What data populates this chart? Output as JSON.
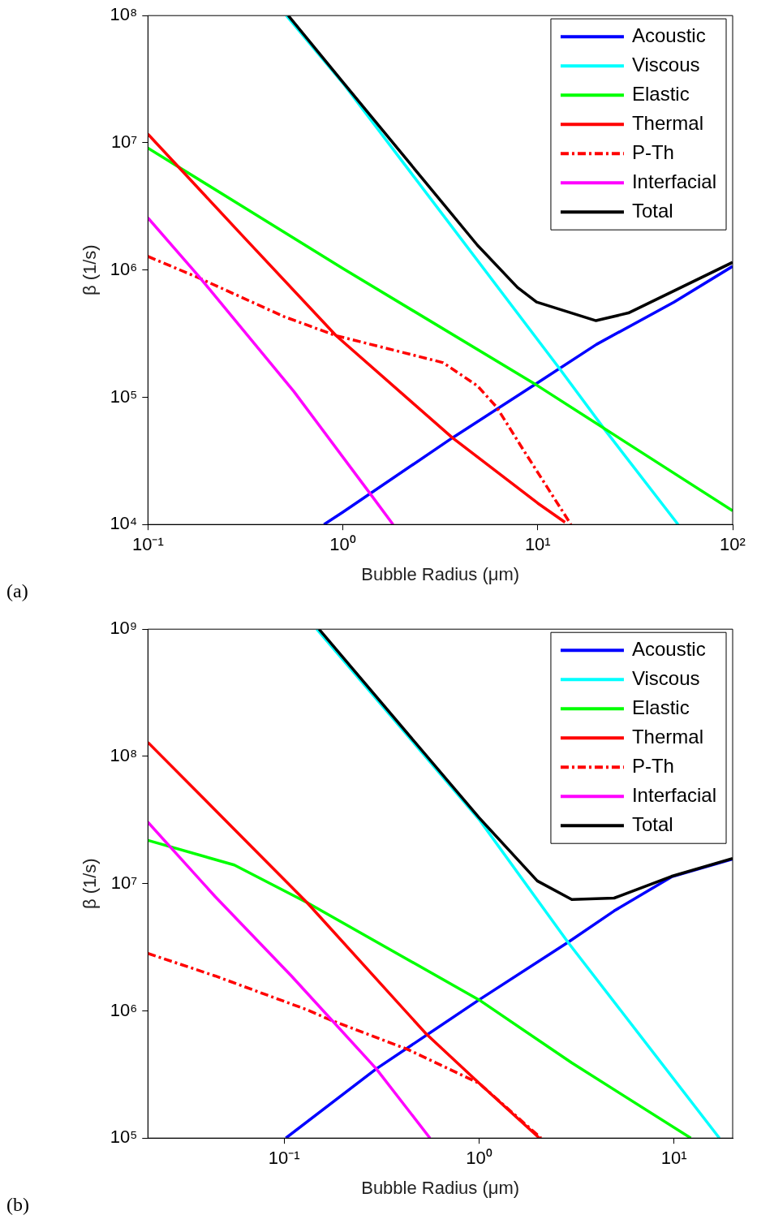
{
  "chart_data": [
    {
      "type": "line",
      "xlabel": "Bubble Radius (μm)",
      "ylabel": "β (1/s)",
      "log": "xy",
      "xlim": [
        0.1,
        100
      ],
      "ylim": [
        10000,
        100000000
      ],
      "xticks": [
        {
          "value": 0.1,
          "label": "10⁻¹"
        },
        {
          "value": 1,
          "label": "10⁰"
        },
        {
          "value": 10,
          "label": "10¹"
        },
        {
          "value": 100,
          "label": "10²"
        }
      ],
      "yticks": [
        {
          "value": 10000,
          "label": "10⁴"
        },
        {
          "value": 100000,
          "label": "10⁵"
        },
        {
          "value": 1000000,
          "label": "10⁶"
        },
        {
          "value": 10000000,
          "label": "10⁷"
        },
        {
          "value": 100000000,
          "label": "10⁸"
        }
      ],
      "legend": "top right",
      "marker": "none",
      "annotations": [
        "(a)"
      ],
      "series": [
        {
          "name": "Acoustic",
          "color": "#0000ff",
          "x": [
            0.8,
            1,
            3.65,
            10,
            20,
            50,
            100
          ],
          "values": [
            10000,
            12500,
            48000,
            130000,
            260000,
            560000,
            1070000
          ]
        },
        {
          "name": "Viscous",
          "color": "#00ffff",
          "x": [
            0.513,
            1,
            12.9,
            22.2,
            52.5
          ],
          "values": [
            100000000,
            29500000,
            169000,
            55000,
            10000
          ]
        },
        {
          "name": "Elastic",
          "color": "#00ff00",
          "x": [
            0.1,
            1,
            10,
            100
          ],
          "values": [
            9100000,
            1030000,
            123000,
            12800
          ]
        },
        {
          "name": "Thermal",
          "color": "#ff0000",
          "x": [
            0.1,
            0.298,
            0.923,
            3.65,
            10,
            13.8
          ],
          "values": [
            11700000,
            1940000,
            305000,
            48000,
            14700,
            10400
          ]
        },
        {
          "name": "P-Th",
          "color": "#ff0000",
          "line_style": "dashdot",
          "x": [
            0.1,
            0.1815,
            0.5,
            0.923,
            2.49,
            3.27,
            4.9,
            6.14,
            8.4,
            14.8
          ],
          "values": [
            1280000,
            870000,
            430000,
            305000,
            208000,
            187000,
            123000,
            84000,
            39000,
            10000
          ]
        },
        {
          "name": "Interfacial",
          "color": "#ff00ff",
          "x": [
            0.1,
            0.1815,
            0.561,
            1.38,
            1.81
          ],
          "values": [
            2570000,
            900000,
            111000,
            17500,
            10000
          ]
        },
        {
          "name": "Total",
          "color": "#000000",
          "x": [
            0.525,
            1,
            4.9,
            7.87,
            9.86,
            19.9,
            29.2,
            100
          ],
          "values": [
            100000000,
            30000000,
            1570000,
            730000,
            560000,
            400000,
            460000,
            1150000
          ]
        }
      ]
    },
    {
      "type": "line",
      "xlabel": "Bubble Radius (μm)",
      "ylabel": "β (1/s)",
      "log": "xy",
      "xlim": [
        0.02,
        20
      ],
      "ylim": [
        100000,
        1000000000
      ],
      "xticks": [
        {
          "value": 0.1,
          "label": "10⁻¹"
        },
        {
          "value": 1,
          "label": "10⁰"
        },
        {
          "value": 10,
          "label": "10¹"
        }
      ],
      "yticks": [
        {
          "value": 100000,
          "label": "10⁵"
        },
        {
          "value": 1000000,
          "label": "10⁶"
        },
        {
          "value": 10000000,
          "label": "10⁷"
        },
        {
          "value": 100000000,
          "label": "10⁸"
        },
        {
          "value": 1000000000,
          "label": "10⁹"
        }
      ],
      "legend": "top right",
      "marker": "none",
      "annotations": [
        "(b)"
      ],
      "series": [
        {
          "name": "Acoustic",
          "color": "#0000ff",
          "x": [
            0.102,
            0.297,
            1,
            2.86,
            4.93,
            9.7,
            20
          ],
          "values": [
            100000,
            350000,
            1220000,
            3460000,
            6100000,
            11300000,
            15600000
          ]
        },
        {
          "name": "Viscous",
          "color": "#00ffff",
          "x": [
            0.147,
            1,
            2.86,
            17.1
          ],
          "values": [
            1000000000,
            32000000,
            3460000,
            100000
          ]
        },
        {
          "name": "Elastic",
          "color": "#00ff00",
          "x": [
            0.02,
            0.0555,
            0.131,
            1,
            2.99,
            12.2
          ],
          "values": [
            21900000,
            14000000,
            7100000,
            1220000,
            390000,
            100000
          ]
        },
        {
          "name": "Thermal",
          "color": "#ff0000",
          "x": [
            0.02,
            0.131,
            0.535,
            1,
            2.04
          ],
          "values": [
            129000000,
            7100000,
            660000,
            270000,
            100000
          ]
        },
        {
          "name": "P-Th",
          "color": "#ff0000",
          "line_style": "dashdot",
          "x": [
            0.02,
            0.0443,
            0.131,
            0.172,
            0.427,
            1,
            2.08
          ],
          "values": [
            2830000,
            1880000,
            1020000,
            850000,
            500000,
            270000,
            100000
          ]
        },
        {
          "name": "Interfacial",
          "color": "#ff00ff",
          "x": [
            0.02,
            0.0443,
            0.109,
            0.297,
            0.56
          ],
          "values": [
            30400000,
            7900000,
            1880000,
            350000,
            100000
          ]
        },
        {
          "name": "Total",
          "color": "#000000",
          "x": [
            0.151,
            1,
            1.99,
            2.99,
            4.93,
            9.7,
            20
          ],
          "values": [
            1000000000,
            33000000,
            10500000,
            7500000,
            7700000,
            11400000,
            15800000
          ]
        }
      ]
    }
  ]
}
